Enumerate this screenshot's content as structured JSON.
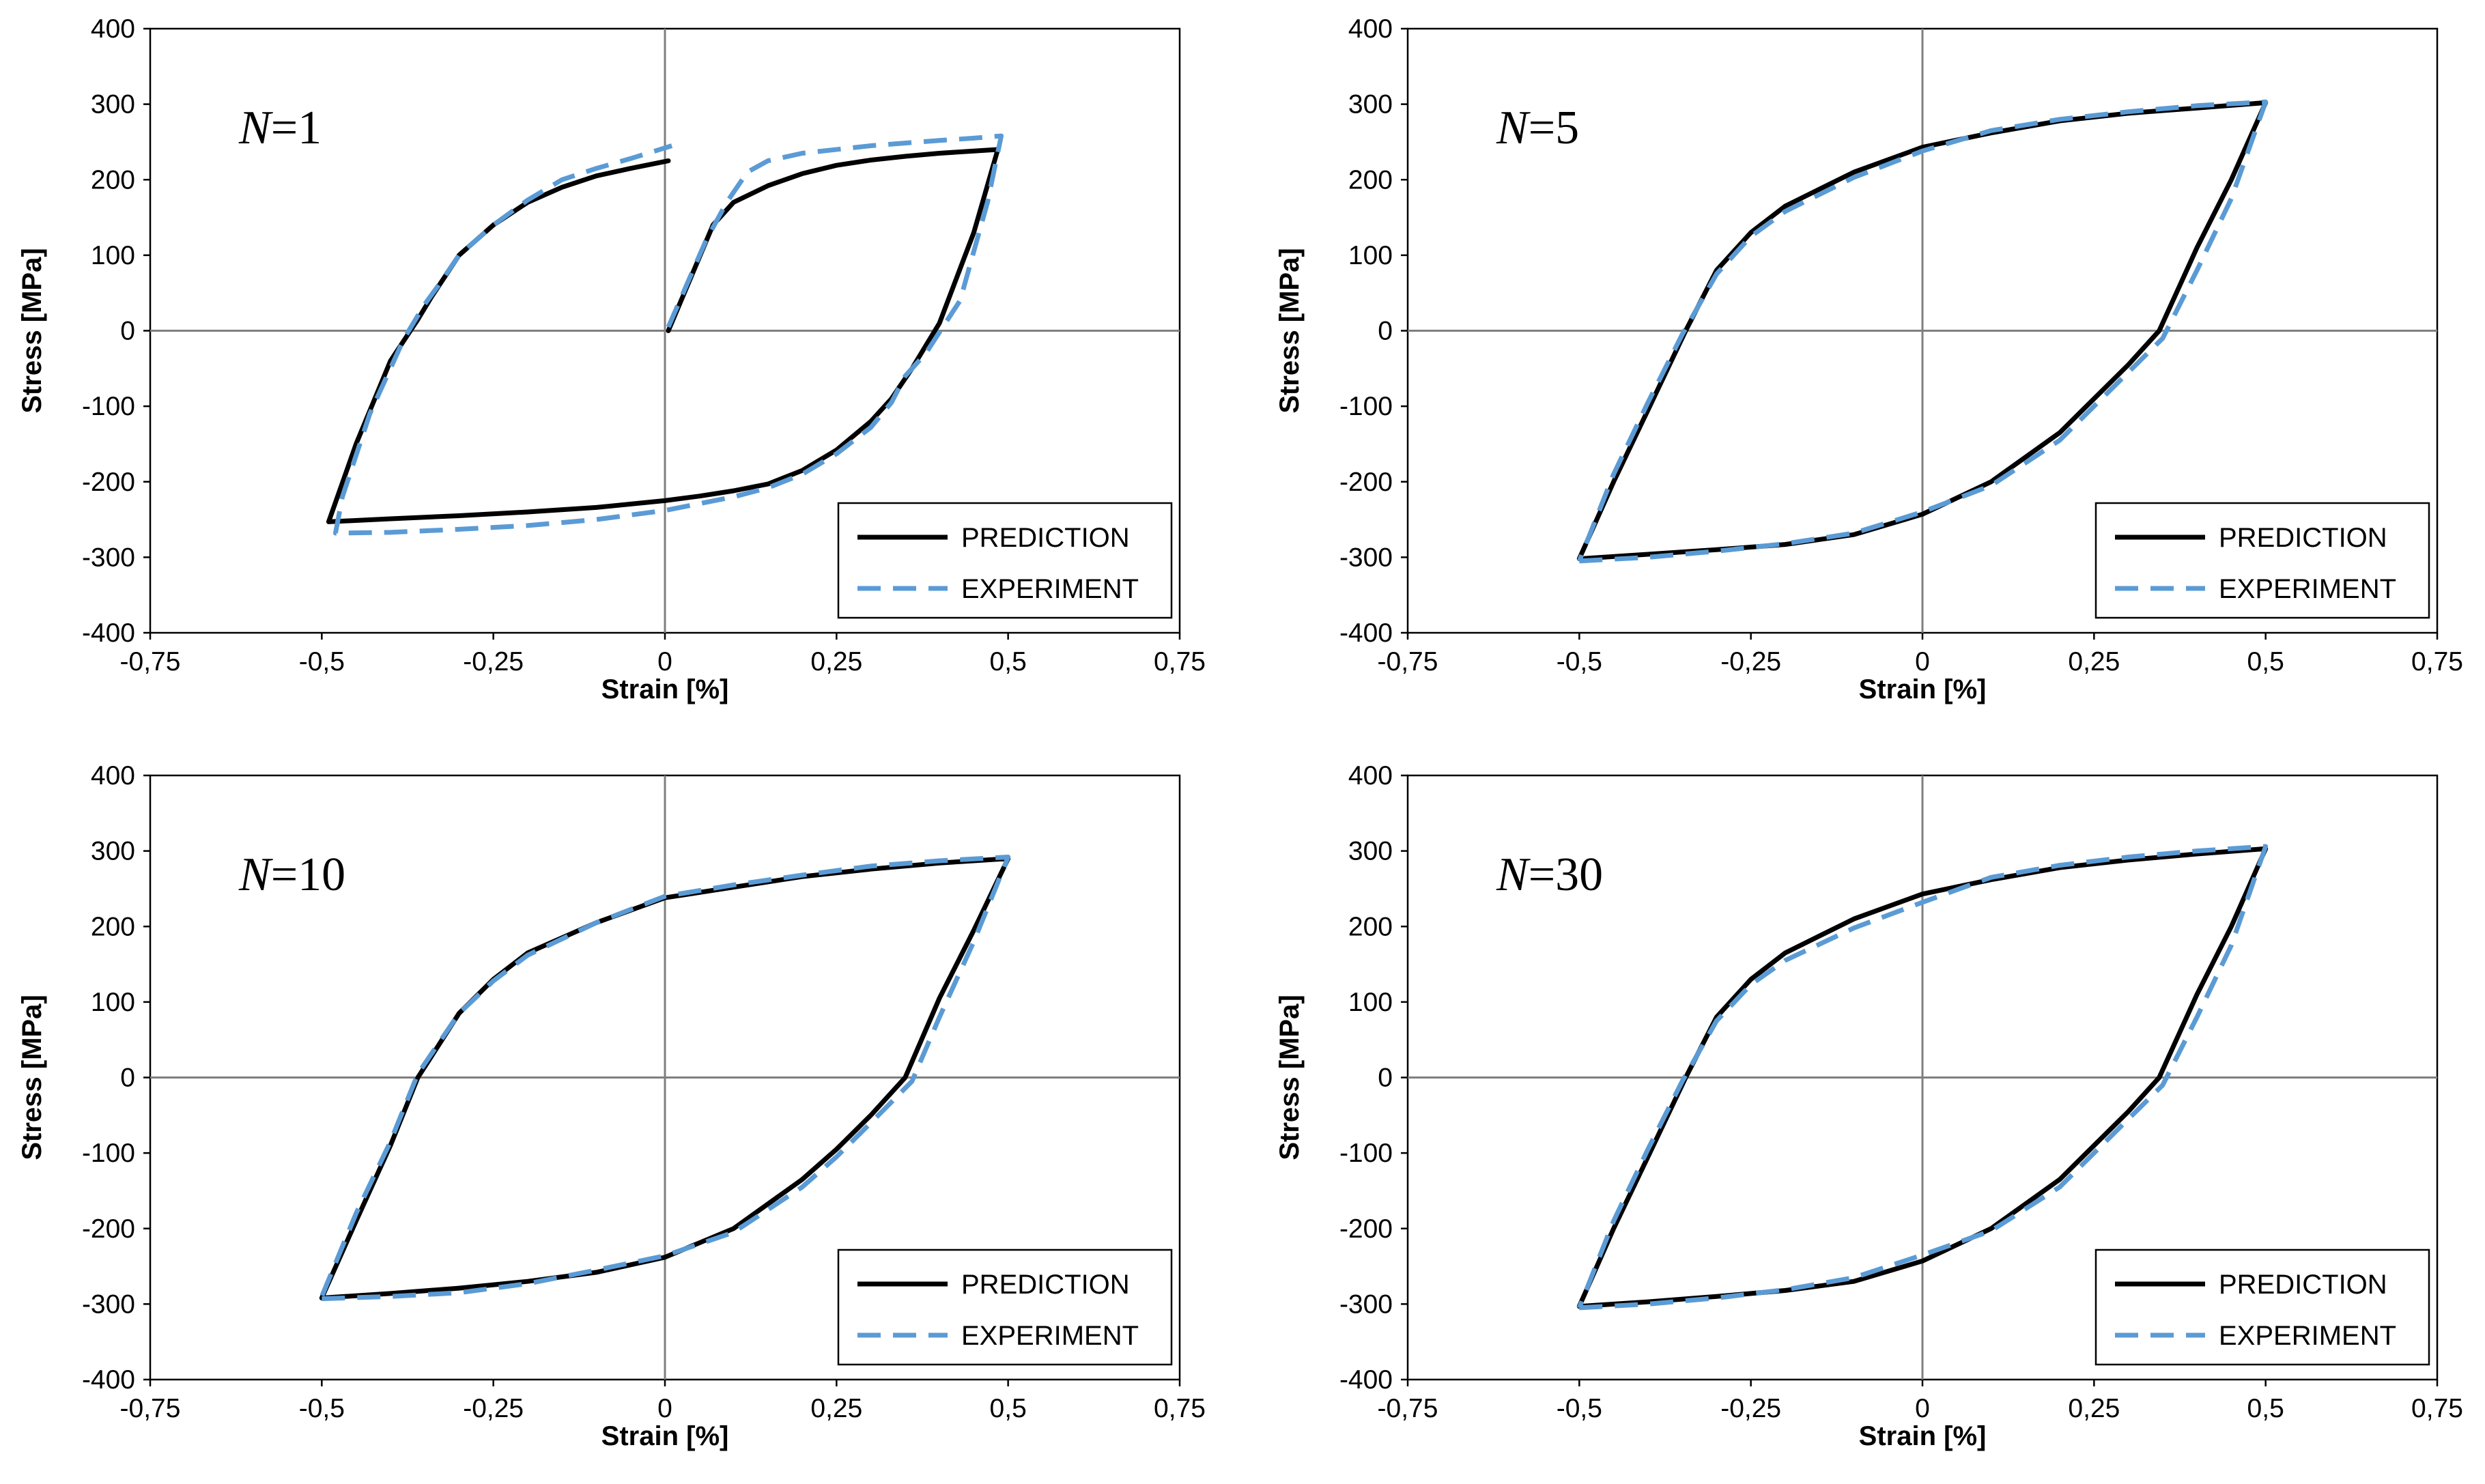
{
  "colors": {
    "prediction": "#000000",
    "experiment": "#5B9BD5",
    "grid": "#7f7f7f",
    "frame": "#000000"
  },
  "legend": {
    "prediction_label": "PREDICTION",
    "experiment_label": "EXPERIMENT"
  },
  "chart_data": [
    {
      "type": "line",
      "panel_prefix": "N",
      "panel_value": "=1",
      "xlabel": "Strain [%]",
      "ylabel": "Stress [MPa]",
      "xlim": [
        -0.75,
        0.75
      ],
      "ylim": [
        -400,
        400
      ],
      "x_ticks": [
        -0.75,
        -0.5,
        -0.25,
        0,
        0.25,
        0.5,
        0.75
      ],
      "x_tick_labels": [
        "-0,75",
        "-0,5",
        "-0,25",
        "0",
        "0,25",
        "0,5",
        "0,75"
      ],
      "y_ticks": [
        400,
        300,
        200,
        100,
        0,
        -100,
        -200,
        -300,
        -400
      ],
      "y_tick_labels": [
        "400",
        "300",
        "200",
        "100",
        "0",
        "-100",
        "-200",
        "-300",
        "-400"
      ],
      "series": [
        {
          "name": "PREDICTION",
          "x": [
            0.005,
            0.07,
            0.1,
            0.15,
            0.2,
            0.25,
            0.3,
            0.35,
            0.4,
            0.45,
            0.485,
            0.45,
            0.4,
            0.36,
            0.33,
            0.3,
            0.25,
            0.2,
            0.15,
            0.1,
            0.05,
            0,
            -0.1,
            -0.2,
            -0.3,
            -0.4,
            -0.49,
            -0.45,
            -0.4,
            -0.36,
            -0.34,
            -0.3,
            -0.25,
            -0.2,
            -0.15,
            -0.1,
            -0.05,
            0.005
          ],
          "y": [
            0,
            140,
            170,
            192,
            208,
            219,
            226,
            231,
            235,
            238,
            240,
            130,
            10,
            -50,
            -90,
            -120,
            -158,
            -185,
            -203,
            -212,
            -219,
            -225,
            -234,
            -240,
            -245,
            -249,
            -253,
            -150,
            -40,
            15,
            45,
            100,
            140,
            170,
            190,
            205,
            215,
            225
          ]
        },
        {
          "name": "EXPERIMENT",
          "x": [
            0.005,
            0.06,
            0.09,
            0.12,
            0.15,
            0.2,
            0.3,
            0.4,
            0.45,
            0.49,
            0.47,
            0.43,
            0.38,
            0.35,
            0.33,
            0.3,
            0.25,
            0.2,
            0.15,
            0.1,
            0,
            -0.1,
            -0.2,
            -0.3,
            -0.4,
            -0.48,
            -0.47,
            -0.43,
            -0.38,
            -0.35,
            -0.33,
            -0.3,
            -0.25,
            -0.2,
            -0.15,
            -0.1,
            -0.05,
            0.01
          ],
          "y": [
            5,
            120,
            170,
            210,
            225,
            235,
            245,
            252,
            255,
            258,
            170,
            40,
            -30,
            -60,
            -95,
            -128,
            -163,
            -190,
            -208,
            -220,
            -238,
            -250,
            -258,
            -263,
            -267,
            -268,
            -220,
            -110,
            -10,
            35,
            60,
            100,
            140,
            173,
            200,
            215,
            228,
            245
          ]
        }
      ]
    },
    {
      "type": "line",
      "panel_prefix": "N",
      "panel_value": "=5",
      "xlabel": "Strain [%]",
      "ylabel": "Stress [MPa]",
      "xlim": [
        -0.75,
        0.75
      ],
      "ylim": [
        -400,
        400
      ],
      "x_ticks": [
        -0.75,
        -0.5,
        -0.25,
        0,
        0.25,
        0.5,
        0.75
      ],
      "x_tick_labels": [
        "-0,75",
        "-0,5",
        "-0,25",
        "0",
        "0,25",
        "0,5",
        "0,75"
      ],
      "y_ticks": [
        400,
        300,
        200,
        100,
        0,
        -100,
        -200,
        -300,
        -400
      ],
      "y_tick_labels": [
        "400",
        "300",
        "200",
        "100",
        "0",
        "-100",
        "-200",
        "-300",
        "-400"
      ],
      "series": [
        {
          "name": "PREDICTION",
          "x": [
            -0.5,
            -0.4,
            -0.3,
            -0.2,
            -0.1,
            0,
            0.1,
            0.2,
            0.25,
            0.3,
            0.345,
            0.4,
            0.45,
            0.5,
            0.4,
            0.3,
            0.2,
            0.1,
            0,
            -0.1,
            -0.2,
            -0.25,
            -0.3,
            -0.345,
            -0.4,
            -0.45,
            -0.5
          ],
          "y": [
            -302,
            -296,
            -290,
            -283,
            -270,
            -243,
            -200,
            -135,
            -90,
            -45,
            0,
            110,
            200,
            302,
            295,
            288,
            278,
            262,
            243,
            210,
            165,
            130,
            80,
            0,
            -105,
            -200,
            -302
          ]
        },
        {
          "name": "EXPERIMENT",
          "x": [
            -0.5,
            -0.4,
            -0.3,
            -0.2,
            -0.1,
            0,
            0.1,
            0.2,
            0.25,
            0.3,
            0.35,
            0.4,
            0.45,
            0.5,
            0.4,
            0.3,
            0.2,
            0.1,
            0,
            -0.1,
            -0.2,
            -0.25,
            -0.3,
            -0.35,
            -0.4,
            -0.45,
            -0.5
          ],
          "y": [
            -305,
            -300,
            -292,
            -282,
            -268,
            -240,
            -205,
            -145,
            -100,
            -55,
            -10,
            80,
            175,
            303,
            298,
            290,
            280,
            265,
            238,
            203,
            158,
            125,
            75,
            -5,
            -95,
            -190,
            -305
          ]
        }
      ]
    },
    {
      "type": "line",
      "panel_prefix": "N",
      "panel_value": "=10",
      "xlabel": "Strain [%]",
      "ylabel": "Stress [MPa]",
      "xlim": [
        -0.75,
        0.75
      ],
      "ylim": [
        -400,
        400
      ],
      "x_ticks": [
        -0.75,
        -0.5,
        -0.25,
        0,
        0.25,
        0.5,
        0.75
      ],
      "x_tick_labels": [
        "-0,75",
        "-0,5",
        "-0,25",
        "0",
        "0,25",
        "0,5",
        "0,75"
      ],
      "y_ticks": [
        400,
        300,
        200,
        100,
        0,
        -100,
        -200,
        -300,
        -400
      ],
      "y_tick_labels": [
        "400",
        "300",
        "200",
        "100",
        "0",
        "-100",
        "-200",
        "-300",
        "-400"
      ],
      "series": [
        {
          "name": "PREDICTION",
          "x": [
            -0.5,
            -0.4,
            -0.3,
            -0.2,
            -0.1,
            0,
            0.1,
            0.2,
            0.25,
            0.3,
            0.35,
            0.4,
            0.45,
            0.5,
            0.4,
            0.3,
            0.2,
            0.1,
            0,
            -0.1,
            -0.2,
            -0.25,
            -0.3,
            -0.36,
            -0.4,
            -0.45,
            -0.5
          ],
          "y": [
            -292,
            -286,
            -279,
            -270,
            -258,
            -238,
            -200,
            -135,
            -95,
            -50,
            0,
            105,
            195,
            290,
            284,
            276,
            266,
            252,
            238,
            205,
            165,
            130,
            85,
            0,
            -90,
            -190,
            -292
          ]
        },
        {
          "name": "EXPERIMENT",
          "x": [
            -0.5,
            -0.4,
            -0.3,
            -0.2,
            -0.1,
            0,
            0.1,
            0.2,
            0.25,
            0.3,
            0.36,
            0.4,
            0.45,
            0.5,
            0.4,
            0.3,
            0.2,
            0.1,
            0,
            -0.1,
            -0.2,
            -0.25,
            -0.3,
            -0.36,
            -0.4,
            -0.45,
            -0.5
          ],
          "y": [
            -293,
            -290,
            -285,
            -273,
            -255,
            -236,
            -205,
            -145,
            -105,
            -60,
            -5,
            80,
            180,
            292,
            287,
            280,
            268,
            255,
            240,
            205,
            162,
            128,
            85,
            5,
            -85,
            -180,
            -290
          ]
        }
      ]
    },
    {
      "type": "line",
      "panel_prefix": "N",
      "panel_value": "=30",
      "xlabel": "Strain [%]",
      "ylabel": "Stress [MPa]",
      "xlim": [
        -0.75,
        0.75
      ],
      "ylim": [
        -400,
        400
      ],
      "x_ticks": [
        -0.75,
        -0.5,
        -0.25,
        0,
        0.25,
        0.5,
        0.75
      ],
      "x_tick_labels": [
        "-0,75",
        "-0,5",
        "-0,25",
        "0",
        "0,25",
        "0,5",
        "0,75"
      ],
      "y_ticks": [
        400,
        300,
        200,
        100,
        0,
        -100,
        -200,
        -300,
        -400
      ],
      "y_tick_labels": [
        "400",
        "300",
        "200",
        "100",
        "0",
        "-100",
        "-200",
        "-300",
        "-400"
      ],
      "series": [
        {
          "name": "PREDICTION",
          "x": [
            -0.5,
            -0.4,
            -0.3,
            -0.2,
            -0.1,
            0,
            0.1,
            0.2,
            0.25,
            0.3,
            0.345,
            0.4,
            0.45,
            0.5,
            0.4,
            0.3,
            0.2,
            0.1,
            0,
            -0.1,
            -0.2,
            -0.25,
            -0.3,
            -0.345,
            -0.4,
            -0.45,
            -0.5
          ],
          "y": [
            -303,
            -297,
            -290,
            -282,
            -270,
            -243,
            -200,
            -135,
            -90,
            -45,
            0,
            110,
            200,
            303,
            296,
            288,
            278,
            262,
            243,
            210,
            165,
            130,
            80,
            0,
            -105,
            -200,
            -303
          ]
        },
        {
          "name": "EXPERIMENT",
          "x": [
            -0.5,
            -0.4,
            -0.3,
            -0.2,
            -0.1,
            0,
            0.1,
            0.2,
            0.25,
            0.3,
            0.35,
            0.4,
            0.45,
            0.5,
            0.4,
            0.3,
            0.2,
            0.1,
            0,
            -0.1,
            -0.2,
            -0.25,
            -0.3,
            -0.35,
            -0.4,
            -0.45,
            -0.5
          ],
          "y": [
            -305,
            -300,
            -292,
            -281,
            -265,
            -235,
            -203,
            -145,
            -100,
            -55,
            -10,
            80,
            175,
            306,
            300,
            292,
            281,
            265,
            232,
            198,
            155,
            123,
            75,
            -5,
            -95,
            -190,
            -305
          ]
        }
      ]
    }
  ]
}
